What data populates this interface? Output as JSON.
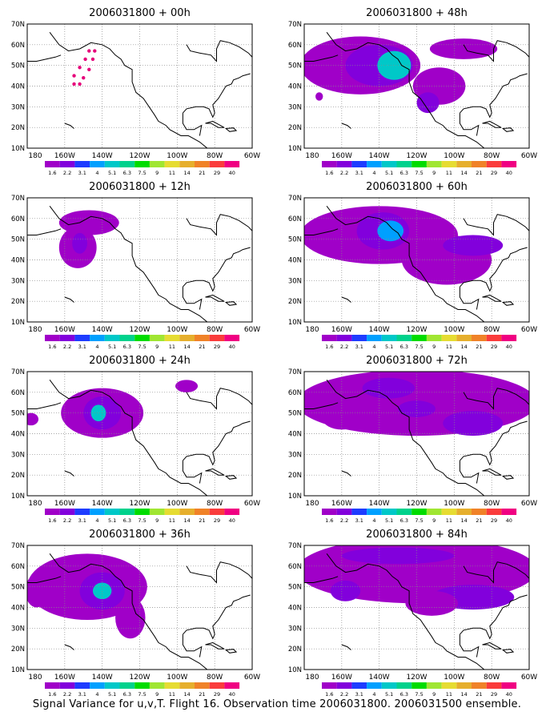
{
  "footer": "Signal Variance for u,v,T. Flight 16. Observation time 2006031800. 2006031500 ensemble.",
  "map_axes": {
    "lat_labels": [
      "70N",
      "60N",
      "50N",
      "40N",
      "30N",
      "20N",
      "10N"
    ],
    "lon_labels": [
      "180",
      "160W",
      "140W",
      "120W",
      "100W",
      "80W",
      "60W"
    ]
  },
  "color_scale": {
    "labels": [
      "1.6",
      "2.2",
      "3.1",
      "4",
      "5.1",
      "6.3",
      "7.5",
      "9",
      "11",
      "14",
      "21",
      "29",
      "40"
    ],
    "colors": [
      "#a000c8",
      "#8200dc",
      "#1e3cff",
      "#00a0ff",
      "#00c8c8",
      "#00d28c",
      "#00dc00",
      "#a0e632",
      "#e6dc32",
      "#e6af2d",
      "#f08228",
      "#fa3c3c",
      "#f00082"
    ]
  },
  "panels": [
    {
      "title": "2006031800 + 00h"
    },
    {
      "title": "2006031800 + 48h"
    },
    {
      "title": "2006031800 + 12h"
    },
    {
      "title": "2006031800 + 60h"
    },
    {
      "title": "2006031800 + 24h"
    },
    {
      "title": "2006031800 + 72h"
    },
    {
      "title": "2006031800 + 36h"
    },
    {
      "title": "2006031800 + 84h"
    }
  ]
}
